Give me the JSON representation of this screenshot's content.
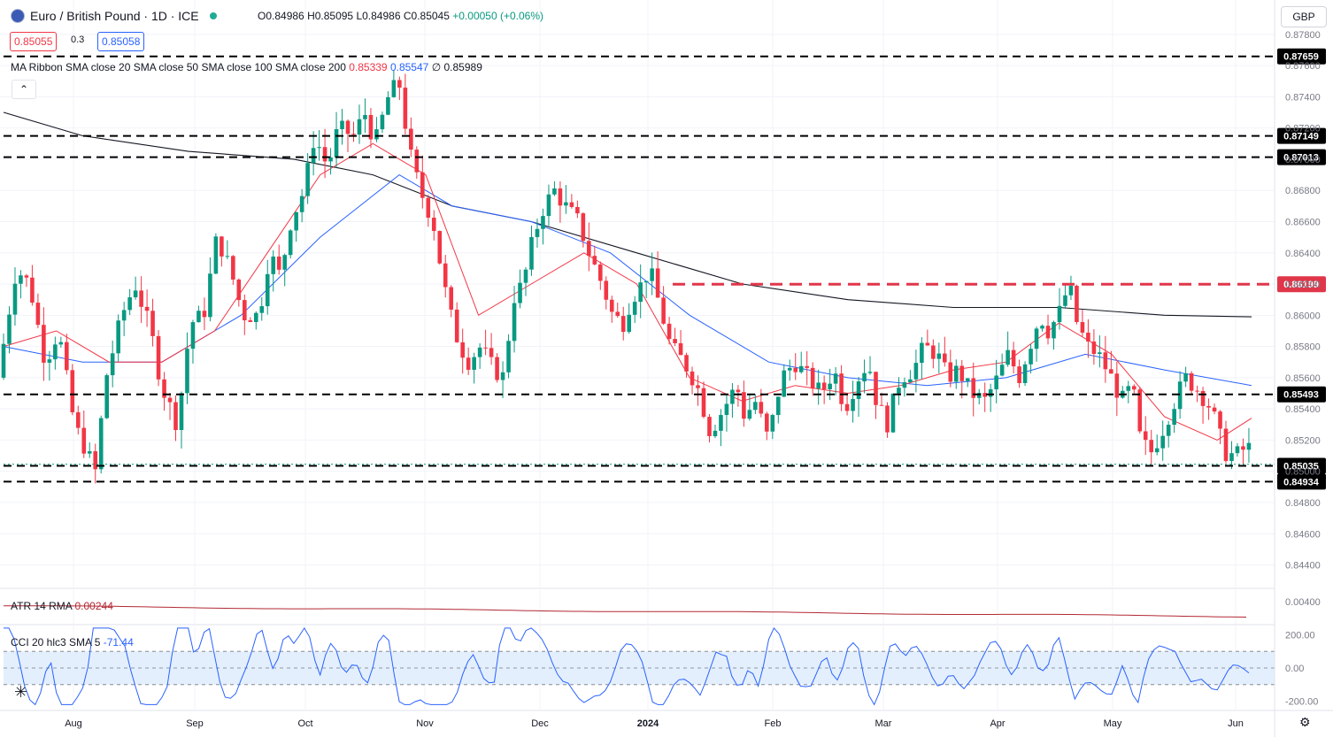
{
  "header": {
    "symbol_title": "Euro / British Pound · 1D · ICE",
    "ohlc_open": "O0.84986",
    "ohlc_high": "H0.85095",
    "ohlc_low": "L0.84986",
    "ohlc_close": "C0.85045",
    "ohlc_change": "+0.00050 (+0.06%)",
    "sell_price": "0.85055",
    "spread": "0.3",
    "buy_price": "0.85058",
    "currency_button": "GBP"
  },
  "legends": {
    "ma_ribbon_label": "MA Ribbon SMA close 20 SMA close 50 SMA close 100 SMA close 200",
    "ma_values": [
      "0.85339",
      "0.85547",
      "∅",
      "0.85989"
    ],
    "ma_colors": [
      "#f23645",
      "#2962ff",
      "#131722",
      "#131722"
    ],
    "atr_label": "ATR 14 RMA",
    "atr_value": "0.00244",
    "cci_label": "CCI 20 hlc3 SMA 5",
    "cci_value": "-71.44"
  },
  "colors": {
    "up": "#089981",
    "down": "#f23645",
    "ma20": "#f23645",
    "ma50": "#2962ff",
    "ma200": "#131722",
    "atr": "#b22833",
    "cci": "#2962ff",
    "band_fill": "#e3effd",
    "resistance_red": "#e0364a"
  },
  "icons": {
    "collapse": "chevron-up-icon",
    "settings": "gear-icon",
    "logo": "tradingview-logo"
  },
  "chart_data": {
    "type": "candlestick",
    "title": "Euro / British Pound · 1D · ICE",
    "ylim": [
      0.8425,
      0.8785
    ],
    "y_ticks": [
      "0.87800",
      "0.87600",
      "0.87400",
      "0.87200",
      "0.87000",
      "0.86800",
      "0.86600",
      "0.86400",
      "0.86200",
      "0.86000",
      "0.85800",
      "0.85600",
      "0.85400",
      "0.85200",
      "0.85000",
      "0.84800",
      "0.84600",
      "0.84400"
    ],
    "x_labels": [
      "Aug",
      "Sep",
      "Oct",
      "Nov",
      "Dec",
      "2024",
      "Feb",
      "Mar",
      "Apr",
      "May",
      "Jun"
    ],
    "horizontal_levels": [
      {
        "value": 0.87659,
        "label": "0.87659",
        "style": "dashed"
      },
      {
        "value": 0.87149,
        "label": "0.87149",
        "style": "dashed"
      },
      {
        "value": 0.87013,
        "label": "0.87013",
        "style": "dashed"
      },
      {
        "value": 0.86199,
        "label": "0.86199",
        "style": "dashed-red"
      },
      {
        "value": 0.85493,
        "label": "0.85493",
        "style": "dashed"
      },
      {
        "value": 0.85035,
        "label": "0.85035",
        "style": "dashed"
      },
      {
        "value": 0.84934,
        "label": "0.84934",
        "style": "dashed"
      }
    ],
    "price_path": [
      [
        0,
        0.856
      ],
      [
        14,
        0.863
      ],
      [
        24,
        0.862
      ],
      [
        36,
        0.857
      ],
      [
        46,
        0.859
      ],
      [
        58,
        0.853
      ],
      [
        74,
        0.85
      ],
      [
        82,
        0.856
      ],
      [
        94,
        0.86
      ],
      [
        104,
        0.862
      ],
      [
        116,
        0.859
      ],
      [
        124,
        0.8555
      ],
      [
        136,
        0.853
      ],
      [
        146,
        0.8595
      ],
      [
        156,
        0.86
      ],
      [
        166,
        0.865
      ],
      [
        176,
        0.863
      ],
      [
        186,
        0.86
      ],
      [
        198,
        0.86
      ],
      [
        206,
        0.864
      ],
      [
        214,
        0.8625
      ],
      [
        222,
        0.866
      ],
      [
        232,
        0.868
      ],
      [
        240,
        0.8715
      ],
      [
        250,
        0.8695
      ],
      [
        258,
        0.872
      ],
      [
        270,
        0.8715
      ],
      [
        278,
        0.873
      ],
      [
        286,
        0.871
      ],
      [
        296,
        0.874
      ],
      [
        304,
        0.875
      ],
      [
        312,
        0.8705
      ],
      [
        320,
        0.868
      ],
      [
        330,
        0.866
      ],
      [
        338,
        0.862
      ],
      [
        346,
        0.859
      ],
      [
        356,
        0.857
      ],
      [
        366,
        0.858
      ],
      [
        376,
        0.8565
      ],
      [
        384,
        0.856
      ],
      [
        390,
        0.861
      ],
      [
        398,
        0.862
      ],
      [
        406,
        0.865
      ],
      [
        414,
        0.867
      ],
      [
        422,
        0.868
      ],
      [
        430,
        0.867
      ],
      [
        440,
        0.866
      ],
      [
        448,
        0.864
      ],
      [
        458,
        0.862
      ],
      [
        466,
        0.86
      ],
      [
        474,
        0.8595
      ],
      [
        480,
        0.861
      ],
      [
        488,
        0.862
      ],
      [
        494,
        0.863
      ],
      [
        502,
        0.8605
      ],
      [
        510,
        0.858
      ],
      [
        520,
        0.857
      ],
      [
        530,
        0.8555
      ],
      [
        540,
        0.8525
      ],
      [
        550,
        0.854
      ],
      [
        560,
        0.8555
      ],
      [
        566,
        0.8535
      ],
      [
        574,
        0.8545
      ],
      [
        584,
        0.852
      ],
      [
        594,
        0.856
      ],
      [
        604,
        0.857
      ],
      [
        614,
        0.856
      ],
      [
        624,
        0.855
      ],
      [
        634,
        0.8565
      ],
      [
        642,
        0.854
      ],
      [
        652,
        0.856
      ],
      [
        660,
        0.857
      ],
      [
        666,
        0.8545
      ],
      [
        674,
        0.853
      ],
      [
        684,
        0.856
      ],
      [
        694,
        0.8565
      ],
      [
        702,
        0.858
      ],
      [
        712,
        0.8575
      ],
      [
        720,
        0.856
      ],
      [
        728,
        0.8565
      ],
      [
        738,
        0.855
      ],
      [
        748,
        0.8545
      ],
      [
        758,
        0.856
      ],
      [
        766,
        0.8575
      ],
      [
        774,
        0.856
      ],
      [
        782,
        0.858
      ],
      [
        790,
        0.86
      ],
      [
        796,
        0.859
      ],
      [
        804,
        0.86
      ],
      [
        812,
        0.862
      ],
      [
        818,
        0.8595
      ],
      [
        826,
        0.858
      ],
      [
        834,
        0.8575
      ],
      [
        844,
        0.856
      ],
      [
        852,
        0.8545
      ],
      [
        860,
        0.8555
      ],
      [
        866,
        0.852
      ],
      [
        874,
        0.8512
      ],
      [
        882,
        0.8525
      ],
      [
        892,
        0.8545
      ],
      [
        900,
        0.856
      ],
      [
        910,
        0.8552
      ],
      [
        920,
        0.854
      ],
      [
        930,
        0.8512
      ],
      [
        938,
        0.851
      ],
      [
        946,
        0.8515
      ]
    ],
    "ma20_path": [
      [
        0,
        0.858
      ],
      [
        40,
        0.859
      ],
      [
        80,
        0.857
      ],
      [
        120,
        0.857
      ],
      [
        160,
        0.859
      ],
      [
        200,
        0.864
      ],
      [
        240,
        0.869
      ],
      [
        280,
        0.871
      ],
      [
        320,
        0.869
      ],
      [
        360,
        0.86
      ],
      [
        400,
        0.862
      ],
      [
        440,
        0.864
      ],
      [
        480,
        0.862
      ],
      [
        520,
        0.856
      ],
      [
        560,
        0.8545
      ],
      [
        600,
        0.8555
      ],
      [
        640,
        0.855
      ],
      [
        680,
        0.8555
      ],
      [
        720,
        0.8565
      ],
      [
        760,
        0.857
      ],
      [
        800,
        0.8595
      ],
      [
        840,
        0.8575
      ],
      [
        880,
        0.8535
      ],
      [
        920,
        0.852
      ],
      [
        946,
        0.8534
      ]
    ],
    "ma50_path": [
      [
        0,
        0.858
      ],
      [
        60,
        0.857
      ],
      [
        120,
        0.857
      ],
      [
        180,
        0.86
      ],
      [
        240,
        0.865
      ],
      [
        300,
        0.869
      ],
      [
        340,
        0.867
      ],
      [
        400,
        0.866
      ],
      [
        460,
        0.864
      ],
      [
        520,
        0.86
      ],
      [
        580,
        0.857
      ],
      [
        640,
        0.856
      ],
      [
        700,
        0.8555
      ],
      [
        760,
        0.856
      ],
      [
        820,
        0.8575
      ],
      [
        880,
        0.8565
      ],
      [
        946,
        0.8555
      ]
    ],
    "ma200_path": [
      [
        0,
        0.873
      ],
      [
        60,
        0.8715
      ],
      [
        140,
        0.8705
      ],
      [
        220,
        0.87
      ],
      [
        280,
        0.869
      ],
      [
        340,
        0.867
      ],
      [
        400,
        0.866
      ],
      [
        480,
        0.864
      ],
      [
        560,
        0.862
      ],
      [
        640,
        0.861
      ],
      [
        720,
        0.8605
      ],
      [
        800,
        0.8605
      ],
      [
        880,
        0.86
      ],
      [
        946,
        0.8599
      ]
    ],
    "atr": {
      "ylim": [
        0.002,
        0.0065
      ],
      "y_tick": "0.00400",
      "last": 0.00244
    },
    "cci": {
      "ylim": [
        -250,
        250
      ],
      "y_ticks": [
        "200.00",
        "0.00",
        "-200.00"
      ],
      "band": [
        -100,
        100
      ],
      "last": -71.44
    }
  }
}
